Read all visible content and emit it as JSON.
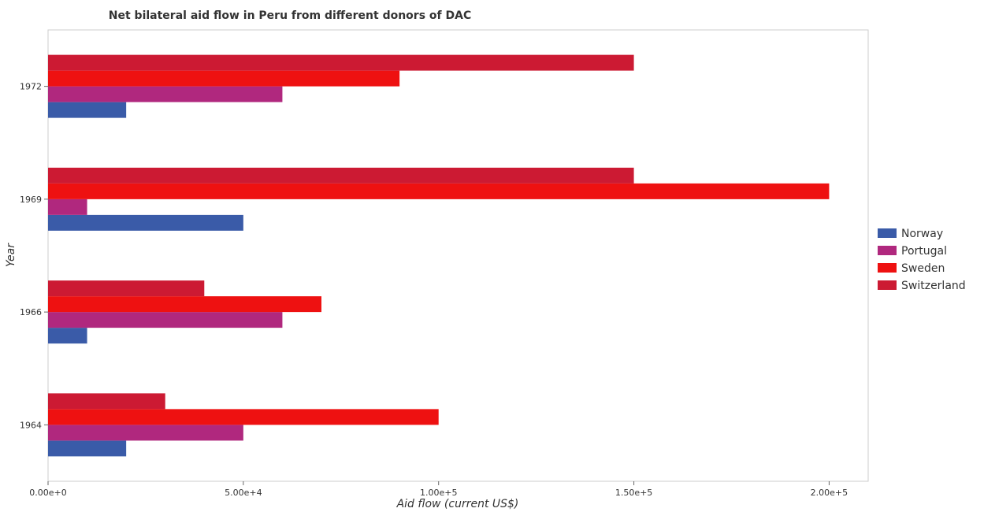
{
  "chart_data": {
    "type": "bar",
    "orientation": "horizontal",
    "title": "Net bilateral aid flow in Peru from different donors of DAC",
    "xlabel": "Aid flow (current US$)",
    "ylabel": "Year",
    "categories": [
      "1964",
      "1966",
      "1969",
      "1972"
    ],
    "xlim": [
      0,
      210000
    ],
    "xticks": [
      0,
      50000,
      100000,
      150000,
      200000
    ],
    "xtick_labels": [
      "0.00e+0",
      "5.00e+4",
      "1.00e+5",
      "1.50e+5",
      "2.00e+5"
    ],
    "grid": false,
    "legend_position": "right",
    "series": [
      {
        "name": "Norway",
        "color": "#3a5ba8",
        "values": [
          20000,
          10000,
          50000,
          20000
        ]
      },
      {
        "name": "Portugal",
        "color": "#b0287e",
        "values": [
          50000,
          60000,
          10000,
          60000
        ]
      },
      {
        "name": "Sweden",
        "color": "#ee1111",
        "values": [
          100000,
          70000,
          200000,
          90000
        ]
      },
      {
        "name": "Switzerland",
        "color": "#cc1a33",
        "values": [
          30000,
          40000,
          150000,
          150000
        ]
      }
    ]
  }
}
